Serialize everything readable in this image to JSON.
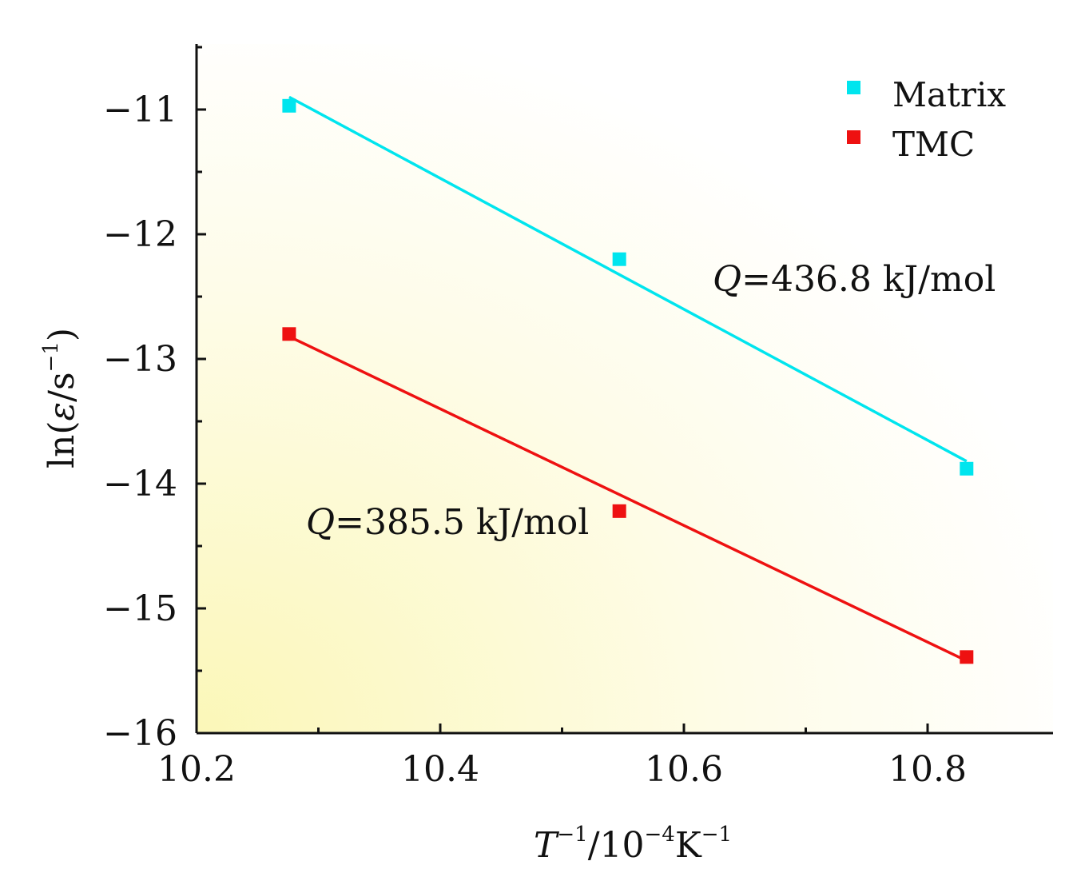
{
  "chart_data": {
    "type": "scatter",
    "title": "",
    "xlabel": {
      "main": "T",
      "sup1": "−1",
      "rest": "/10",
      "sup2": "−4",
      "unit": "K",
      "sup3": "−1"
    },
    "ylabel": {
      "prefix": "ln(",
      "symbol": "ε",
      "mid": "/s",
      "sup": "−1",
      "suffix": ")"
    },
    "xlim": [
      10.2,
      10.9
    ],
    "ylim": [
      -16,
      -10.5
    ],
    "xticks": [
      10.2,
      10.4,
      10.6,
      10.8
    ],
    "xtick_labels": [
      "10.2",
      "10.4",
      "10.6",
      "10.8"
    ],
    "xminor": [
      10.3,
      10.5,
      10.7
    ],
    "yticks": [
      -16,
      -15,
      -14,
      -13,
      -12,
      -11
    ],
    "ytick_labels": [
      "−16",
      "−15",
      "−14",
      "−13",
      "−12",
      "−11"
    ],
    "yminor": [
      -15.5,
      -14.5,
      -13.5,
      -12.5,
      -11.5,
      -10.5
    ],
    "series": [
      {
        "name": "Matrix",
        "color": "#00e5ee",
        "points": [
          {
            "x": 10.276,
            "y": -10.97
          },
          {
            "x": 10.547,
            "y": -12.2
          },
          {
            "x": 10.832,
            "y": -13.88
          }
        ],
        "fit": [
          {
            "x": 10.276,
            "y": -10.9
          },
          {
            "x": 10.832,
            "y": -13.82
          }
        ],
        "annotation": {
          "q": "Q",
          "text": "=436.8 kJ/mol"
        }
      },
      {
        "name": "TMC",
        "color": "#ee1111",
        "points": [
          {
            "x": 10.276,
            "y": -12.8
          },
          {
            "x": 10.547,
            "y": -14.22
          },
          {
            "x": 10.832,
            "y": -15.39
          }
        ],
        "fit": [
          {
            "x": 10.276,
            "y": -12.82
          },
          {
            "x": 10.832,
            "y": -15.42
          }
        ],
        "annotation": {
          "q": "Q",
          "text": "=385.5 kJ/mol"
        }
      }
    ],
    "legend_position": "top-right",
    "background_gradient": {
      "from": "#fbf7b8",
      "to": "#ffffff"
    }
  }
}
